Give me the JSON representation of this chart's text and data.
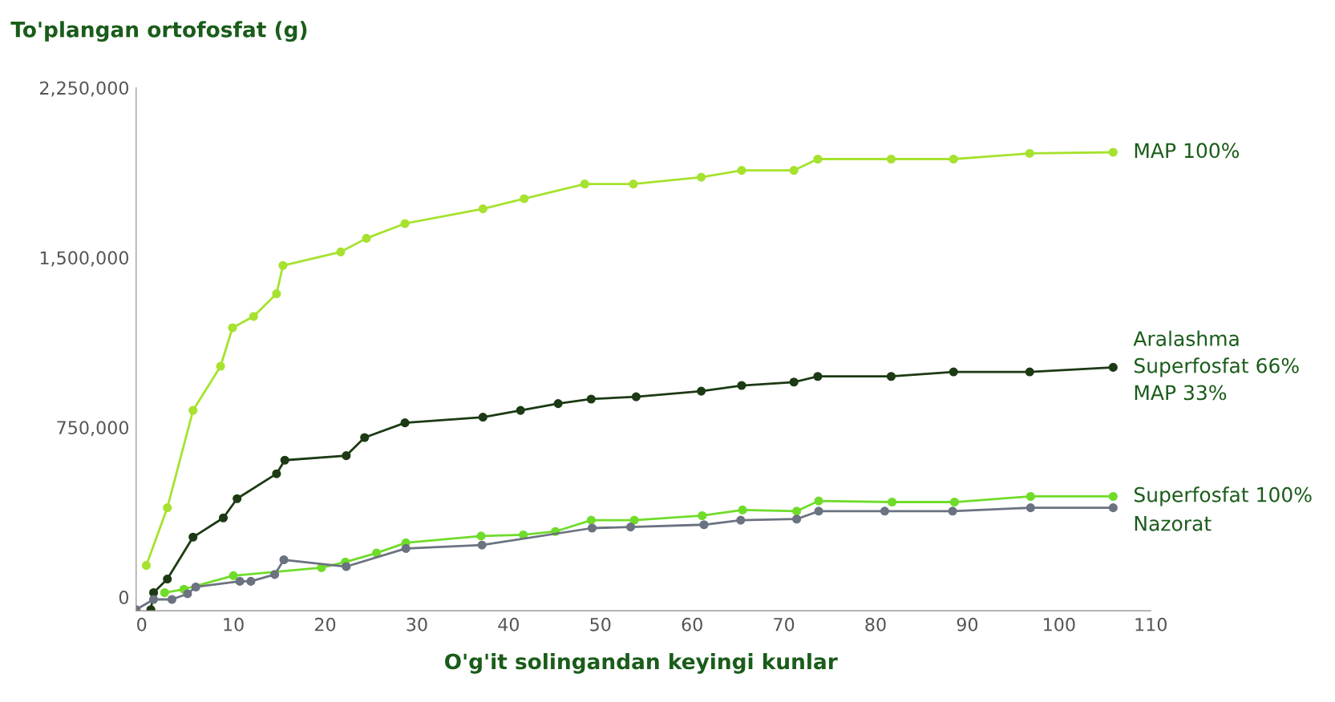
{
  "chart_data": {
    "type": "line",
    "title": "To'plangan ortofosfat (g)",
    "xlabel": "O'g'it solingandan keyingi kunlar",
    "xlim": [
      -0.6,
      110
    ],
    "xticks": [
      0,
      10,
      20,
      30,
      40,
      50,
      60,
      70,
      80,
      90,
      100,
      110
    ],
    "ylim": [
      -60000,
      2250000
    ],
    "yticks": [
      {
        "value": 0,
        "label": "0"
      },
      {
        "value": 750000,
        "label": "750,000"
      },
      {
        "value": 1500000,
        "label": "1,500,000"
      },
      {
        "value": 2250000,
        "label": "2,250,000"
      }
    ],
    "grid": false,
    "legend": false,
    "marker": "circle",
    "line_style": "solid",
    "series": [
      {
        "name": "MAP 100%",
        "color": "#a6e22e",
        "x": [
          0.5,
          2.8,
          5.6,
          8.6,
          9.9,
          12.2,
          14.7,
          15.4,
          21.7,
          24.5,
          28.7,
          37.2,
          41.7,
          48.3,
          53.6,
          61.0,
          65.4,
          71.1,
          73.7,
          81.7,
          88.5,
          96.8,
          105.9
        ],
        "values": [
          140000,
          395000,
          825000,
          1020000,
          1190000,
          1240000,
          1340000,
          1465000,
          1525000,
          1585000,
          1650000,
          1715000,
          1760000,
          1825000,
          1825000,
          1855000,
          1885000,
          1885000,
          1935000,
          1935000,
          1935000,
          1960000,
          1965000
        ]
      },
      {
        "name": "Aralashma\nSuperfosfat 66%\nMAP 33%",
        "color": "#1c3a14",
        "x": [
          1.0,
          1.3,
          2.8,
          5.6,
          8.9,
          10.4,
          14.7,
          15.6,
          22.3,
          24.3,
          28.7,
          37.2,
          41.3,
          45.4,
          49.0,
          53.9,
          61.0,
          65.4,
          71.1,
          73.7,
          81.7,
          88.5,
          96.8,
          105.9
        ],
        "values": [
          -55000,
          20000,
          80000,
          265000,
          350000,
          435000,
          545000,
          605000,
          625000,
          705000,
          770000,
          795000,
          825000,
          855000,
          875000,
          885000,
          910000,
          935000,
          950000,
          975000,
          975000,
          995000,
          995000,
          1015000
        ]
      },
      {
        "name": "Superfosfat 100%",
        "color": "#6fdc2a",
        "x": [
          2.5,
          4.6,
          10.0,
          19.6,
          22.2,
          25.6,
          28.8,
          37.0,
          41.6,
          45.1,
          49.0,
          53.7,
          61.1,
          65.5,
          71.4,
          73.8,
          81.8,
          88.6,
          96.9,
          105.9
        ],
        "values": [
          20000,
          35000,
          95000,
          130000,
          155000,
          195000,
          240000,
          270000,
          275000,
          290000,
          340000,
          340000,
          360000,
          385000,
          380000,
          425000,
          420000,
          420000,
          445000,
          445000
        ]
      },
      {
        "name": "Nazorat",
        "color": "#6b7280",
        "x": [
          -0.6,
          1.3,
          3.3,
          5.0,
          5.9,
          10.7,
          11.9,
          14.5,
          15.5,
          22.3,
          28.8,
          37.1,
          49.1,
          53.3,
          61.3,
          65.3,
          71.4,
          73.8,
          81.0,
          88.4,
          96.9,
          105.9
        ],
        "values": [
          -55000,
          -10000,
          -10000,
          15000,
          45000,
          70000,
          70000,
          100000,
          165000,
          135000,
          215000,
          230000,
          305000,
          310000,
          320000,
          340000,
          345000,
          380000,
          380000,
          380000,
          395000,
          395000
        ]
      }
    ]
  }
}
